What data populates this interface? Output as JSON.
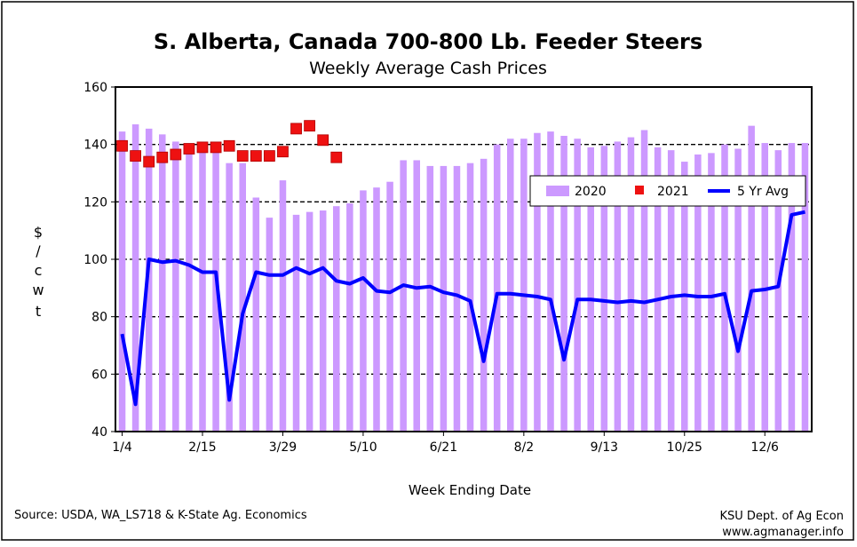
{
  "chart_data": {
    "type": "bar+scatter+line",
    "title": "S. Alberta, Canada 700-800 Lb. Feeder Steers",
    "subtitle": "Weekly Average Cash Prices",
    "xlabel": "Week Ending Date",
    "ylabel": "$ / c w t",
    "ylim": [
      40,
      160
    ],
    "y_ticks": [
      "40",
      "60",
      "80",
      "100",
      "120",
      "140",
      "160"
    ],
    "x_tick_labels": [
      "1/4",
      "2/15",
      "3/29",
      "5/10",
      "6/21",
      "8/2",
      "9/13",
      "10/25",
      "12/6"
    ],
    "grid": "horizontal dashed at 60, 80, 100, 120, 140",
    "legend_position": "upper-right",
    "series": [
      {
        "name": "2020",
        "kind": "bar",
        "color": "#cc99ff",
        "values": [
          144.5,
          147,
          145.5,
          143.5,
          141,
          140,
          139.5,
          138.5,
          133.5,
          133.5,
          121.5,
          114.5,
          127.5,
          115.5,
          116.5,
          117,
          118.5,
          119.5,
          124,
          125,
          127,
          134.5,
          134.5,
          132.5,
          132.5,
          132.5,
          133.5,
          135,
          140,
          142,
          142,
          144,
          144.5,
          143,
          142,
          139,
          139.5,
          141,
          142.5,
          145,
          139,
          138,
          134,
          136.5,
          137,
          140,
          138.5,
          146.5,
          140.5,
          138,
          140.5,
          140.5
        ]
      },
      {
        "name": "2021",
        "kind": "scatter",
        "color": "#ee1111",
        "values": [
          139.5,
          136,
          134,
          135.5,
          136.5,
          138.5,
          139,
          139,
          139.5,
          136,
          136,
          136,
          137.5,
          145.5,
          146.5,
          141.5,
          135.5
        ]
      },
      {
        "name": "5 Yr Avg",
        "kind": "line",
        "color": "#0000ff",
        "values": [
          74,
          49.5,
          100,
          99,
          99.5,
          98,
          95.5,
          95.5,
          51,
          81,
          95.5,
          94.5,
          94.5,
          97,
          95,
          97,
          92.5,
          91.5,
          93.5,
          89,
          88.5,
          91,
          90,
          90.5,
          88.5,
          87.5,
          85.5,
          64.5,
          88,
          88,
          87.5,
          87,
          86,
          65,
          86,
          86,
          85.5,
          85,
          85.5,
          85,
          86,
          87,
          87.5,
          87,
          87,
          88,
          68,
          89,
          89.5,
          90.5,
          115.5,
          116.5
        ]
      }
    ]
  },
  "footer": {
    "source": "Source:  USDA, WA_LS718 & K-State Ag. Economics",
    "org": "KSU Dept. of Ag Econ",
    "site": "www.agmanager.info"
  }
}
